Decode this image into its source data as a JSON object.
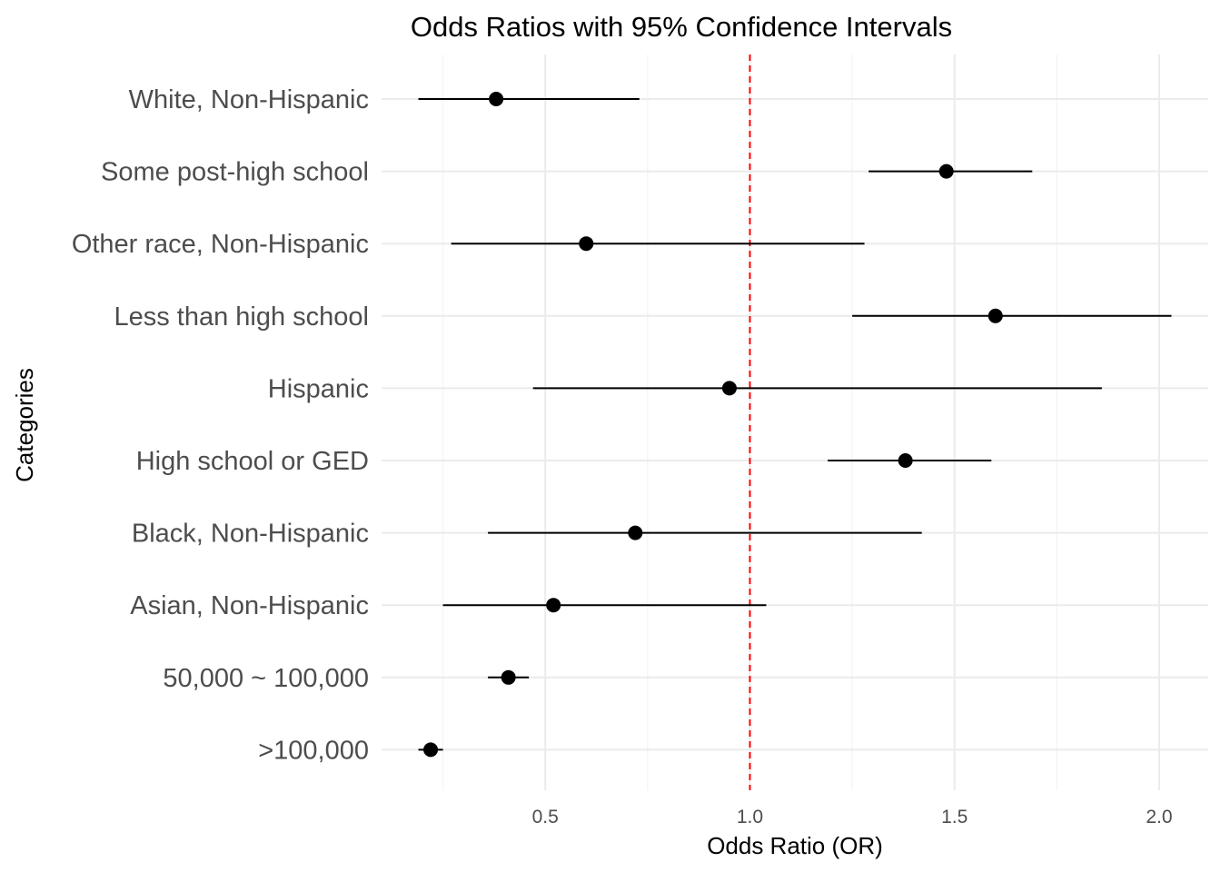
{
  "chart_data": {
    "type": "scatter",
    "subtype": "forest-plot",
    "title": "Odds Ratios with 95% Confidence Intervals",
    "xlabel": "Odds Ratio (OR)",
    "ylabel": "Categories",
    "xlim": [
      0.1,
      2.12
    ],
    "xticks": [
      0.5,
      1.0,
      1.5,
      2.0
    ],
    "xtick_labels": [
      "0.5",
      "1.0",
      "1.5",
      "2.0"
    ],
    "reference_line": {
      "x": 1.0,
      "style": "dashed",
      "color": "#ff0000"
    },
    "grid": true,
    "categories": [
      "White, Non-Hispanic",
      "Some post-high school",
      "Other race, Non-Hispanic",
      "Less than high school",
      "Hispanic",
      "High school or GED",
      "Black, Non-Hispanic",
      "Asian, Non-Hispanic",
      "50,000 ~ 100,000",
      ">100,000"
    ],
    "points": [
      {
        "category": "White, Non-Hispanic",
        "or": 0.38,
        "lower": 0.19,
        "upper": 0.73
      },
      {
        "category": "Some post-high school",
        "or": 1.48,
        "lower": 1.29,
        "upper": 1.69
      },
      {
        "category": "Other race, Non-Hispanic",
        "or": 0.6,
        "lower": 0.27,
        "upper": 1.28
      },
      {
        "category": "Less than high school",
        "or": 1.6,
        "lower": 1.25,
        "upper": 2.03
      },
      {
        "category": "Hispanic",
        "or": 0.95,
        "lower": 0.47,
        "upper": 1.86
      },
      {
        "category": "High school or GED",
        "or": 1.38,
        "lower": 1.19,
        "upper": 1.59
      },
      {
        "category": "Black, Non-Hispanic",
        "or": 0.72,
        "lower": 0.36,
        "upper": 1.42
      },
      {
        "category": "Asian, Non-Hispanic",
        "or": 0.52,
        "lower": 0.25,
        "upper": 1.04
      },
      {
        "category": "50,000 ~ 100,000",
        "or": 0.41,
        "lower": 0.36,
        "upper": 0.46
      },
      {
        "category": ">100,000",
        "or": 0.22,
        "lower": 0.19,
        "upper": 0.25
      }
    ],
    "colors": {
      "points": "#000000",
      "reference": "#ff0000"
    }
  }
}
